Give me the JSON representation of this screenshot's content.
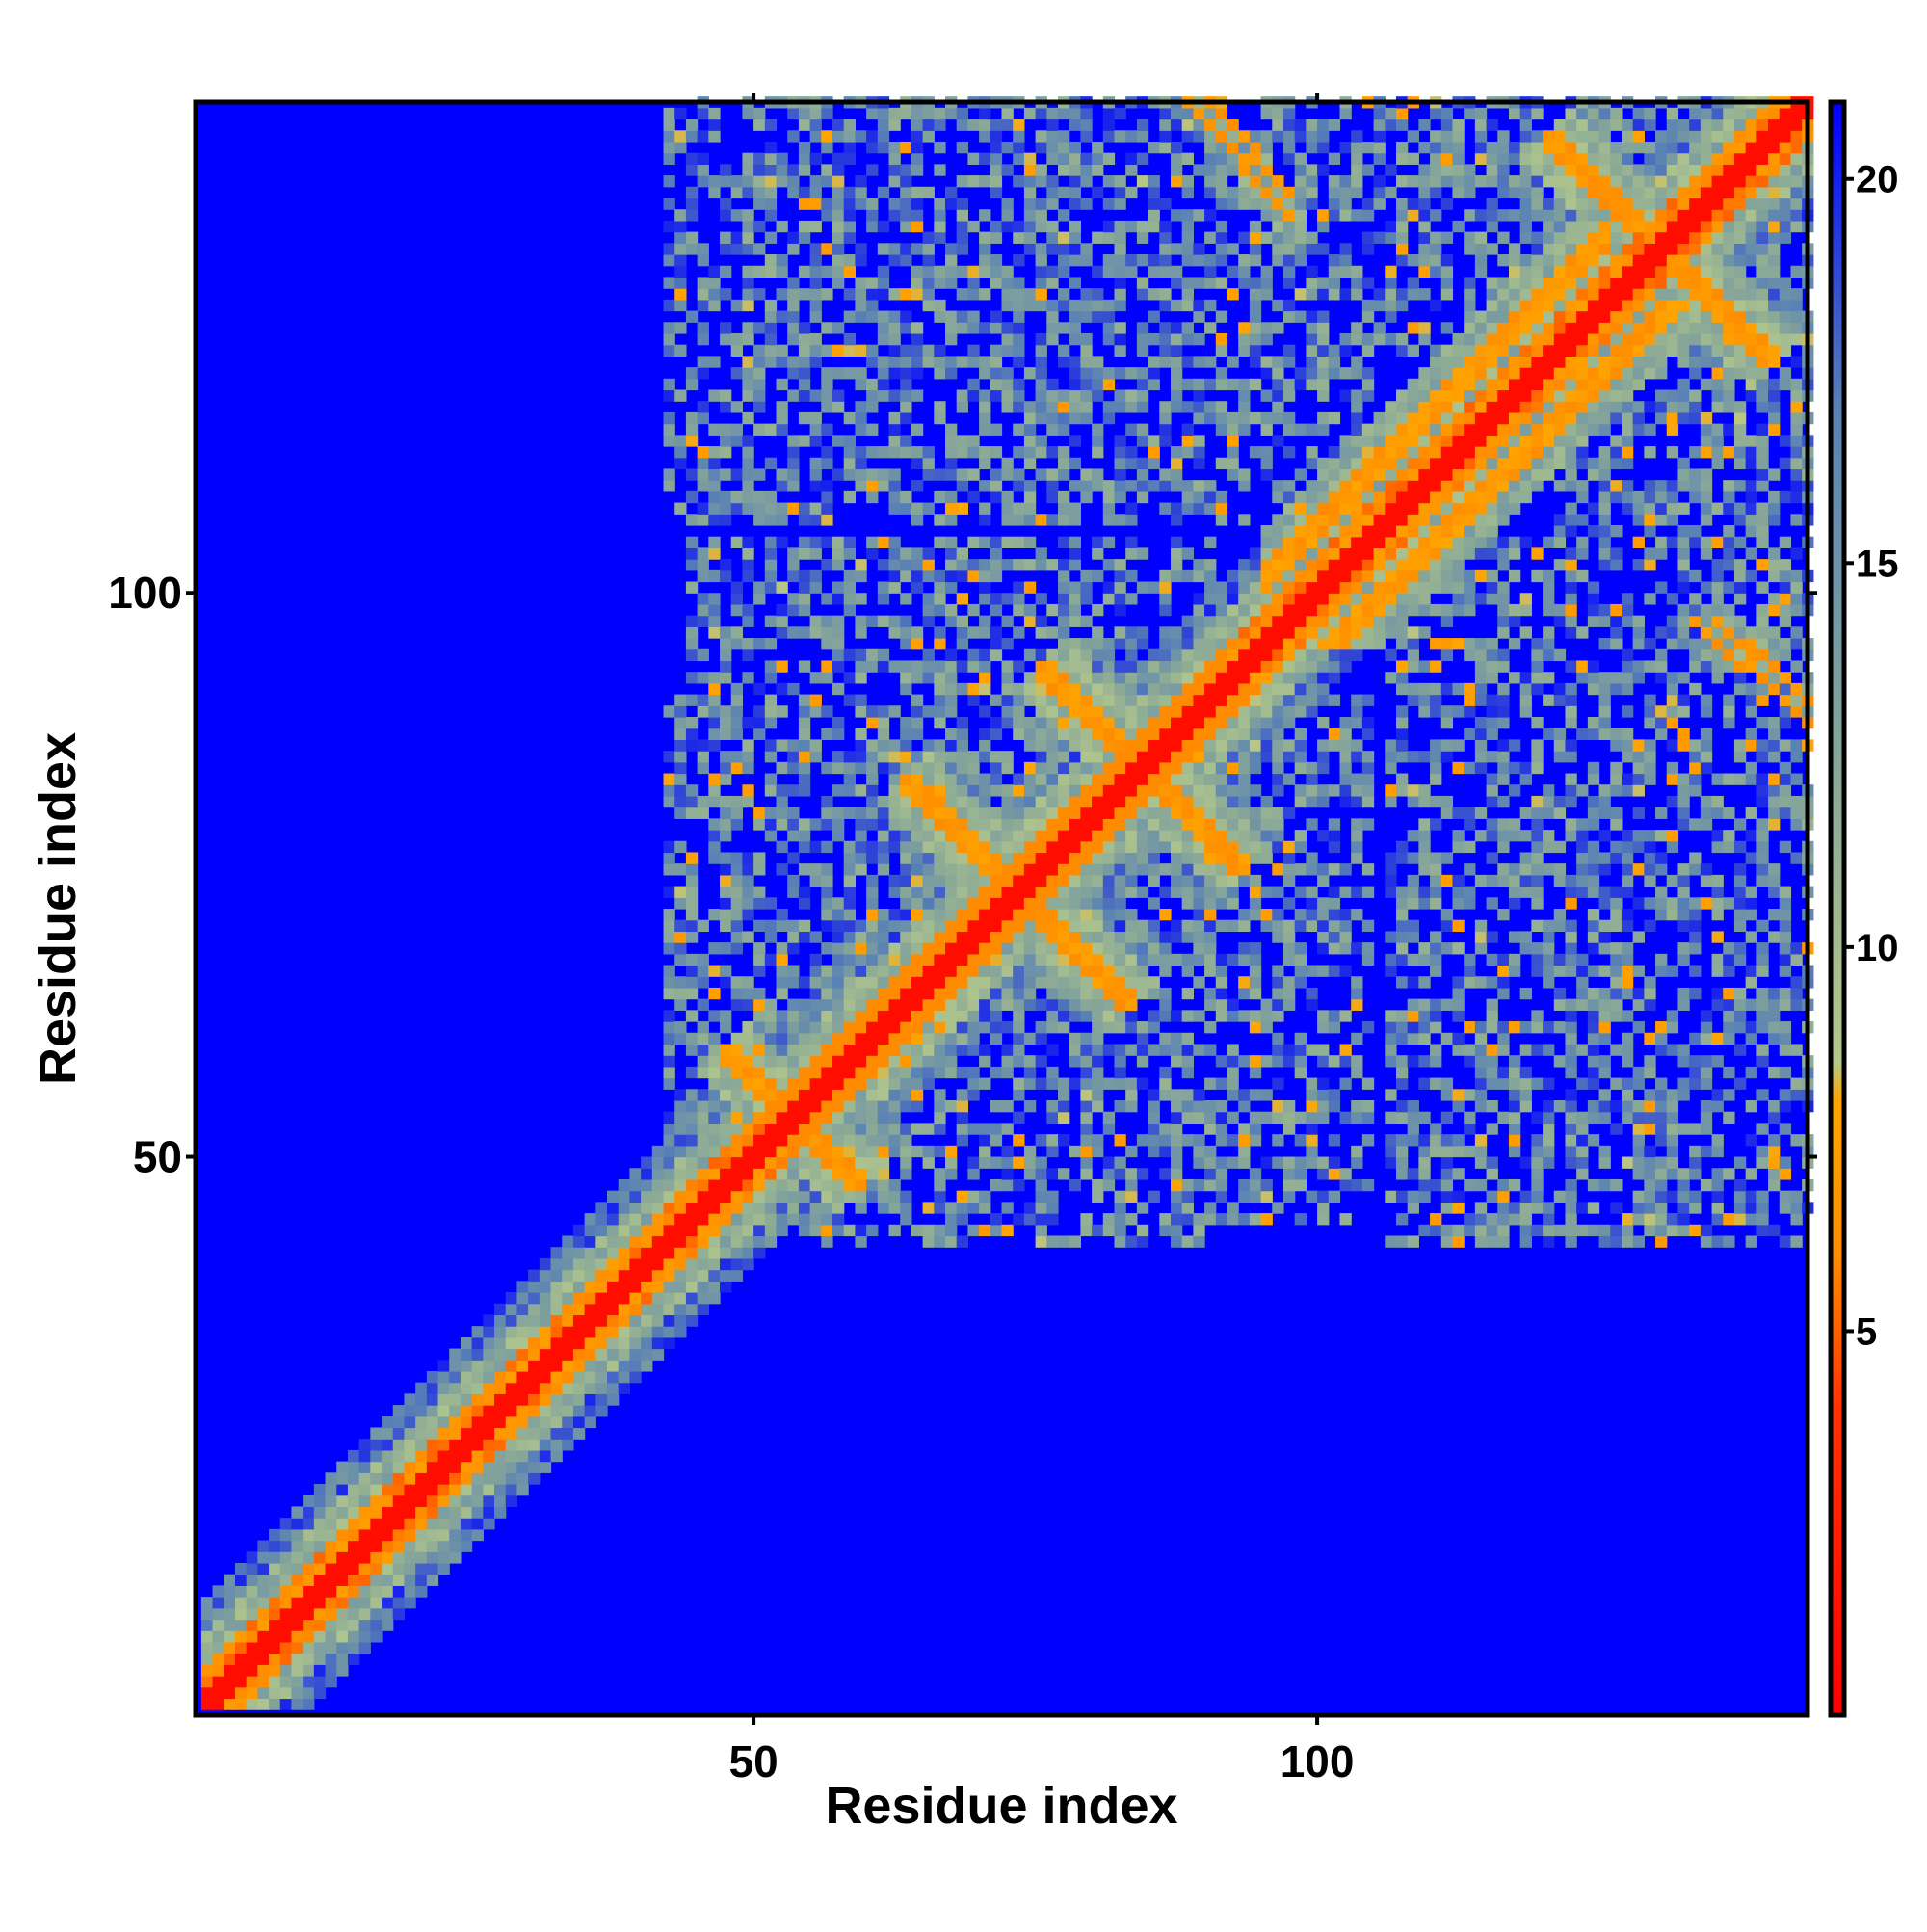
{
  "chart_data": {
    "type": "heatmap",
    "title": "",
    "xlabel": "Residue index",
    "ylabel": "Residue index",
    "n_residues": 143,
    "x_range": [
      1,
      143
    ],
    "y_range": [
      1,
      143
    ],
    "x_ticks": [
      50,
      100
    ],
    "y_ticks": [
      50,
      100
    ],
    "x_tick_labels": [
      "50",
      "100"
    ],
    "y_tick_labels": [
      "50",
      "100"
    ],
    "grid": false,
    "value_description": "pairwise residue distance",
    "colorbar": {
      "placement": "right",
      "range": [
        0,
        21
      ],
      "ticks": [
        5,
        10,
        15,
        20
      ],
      "tick_labels": [
        "5",
        "10",
        "15",
        "20"
      ],
      "stops": [
        {
          "value": 0,
          "color": "#ff0000"
        },
        {
          "value": 4,
          "color": "#ff3300"
        },
        {
          "value": 6,
          "color": "#ff8c00"
        },
        {
          "value": 8,
          "color": "#ffa500"
        },
        {
          "value": 8.5,
          "color": "#b4c88c"
        },
        {
          "value": 12,
          "color": "#8caa96"
        },
        {
          "value": 17,
          "color": "#5a82b4"
        },
        {
          "value": 21,
          "color": "#0000ff"
        }
      ],
      "background_color": "#0000ff"
    },
    "structure": {
      "helix_segments": [
        [
          1,
          50
        ],
        [
          92,
          143
        ]
      ],
      "contact_features": [
        {
          "kind": "antiparallel",
          "center": [
            53,
            53
          ],
          "half_length": 6
        },
        {
          "kind": "antiparallel",
          "center": [
            73,
            73
          ],
          "half_length": 10
        },
        {
          "kind": "antiparallel",
          "center": [
            84,
            84
          ],
          "half_length": 9
        },
        {
          "kind": "antiparallel",
          "center": [
            130,
            130
          ],
          "half_length": 10
        },
        {
          "kind": "parallel_band",
          "from": [
            95,
            101
          ],
          "to": [
            125,
            131
          ]
        },
        {
          "kind": "contact_streak",
          "from": [
            88,
            143
          ],
          "to": [
            97,
            133
          ]
        },
        {
          "kind": "contact_streak",
          "from": [
            135,
            97
          ],
          "to": [
            143,
            90
          ]
        },
        {
          "kind": "scatter_region",
          "x": [
            42,
            143
          ],
          "y": [
            121,
            143
          ]
        },
        {
          "kind": "scatter_region",
          "x": [
            106,
            143
          ],
          "y": [
            42,
            104
          ]
        },
        {
          "kind": "scatter_region",
          "x": [
            44,
            90
          ],
          "y": [
            42,
            104
          ]
        }
      ]
    }
  }
}
